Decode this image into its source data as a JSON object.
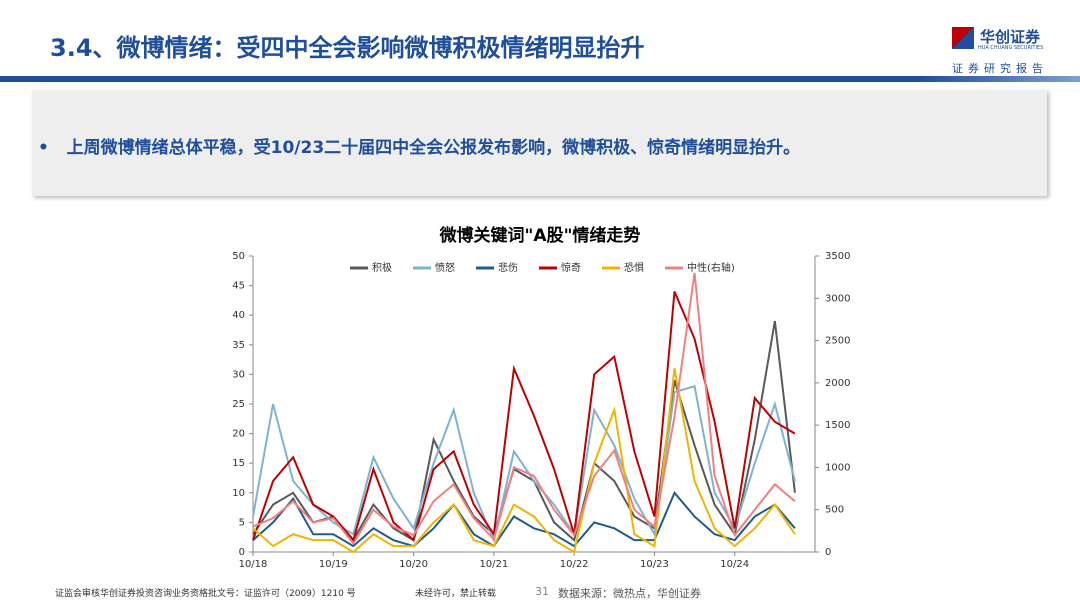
{
  "header": {
    "title": "3.4、微博情绪：受四中全会影响微博积极情绪明显抬升",
    "logo_name": "华创证券",
    "logo_sub": "HUA CHUANG SECURITIES",
    "tagline": "证券研究报告"
  },
  "bullet": "上周微博情绪总体平稳，受10/23二十届四中全会公报发布影响，微博积极、惊奇情绪明显抬升。",
  "chart_data": {
    "type": "line",
    "title": "微博关键词\"A股\"情绪走势",
    "categories": [
      "10/18",
      null,
      null,
      null,
      "10/19",
      null,
      null,
      null,
      "10/20",
      null,
      null,
      null,
      "10/21",
      null,
      null,
      null,
      "10/22",
      null,
      null,
      null,
      "10/23",
      null,
      null,
      null,
      "10/24",
      null,
      null,
      null
    ],
    "series": [
      {
        "name": "积极",
        "color": "#595959",
        "values": [
          3,
          8,
          10,
          5,
          6,
          2,
          8,
          4,
          2,
          19,
          12,
          6,
          3,
          14,
          12,
          5,
          2,
          15,
          12,
          6,
          4,
          29,
          18,
          8,
          3,
          19,
          39,
          10
        ]
      },
      {
        "name": "愤怒",
        "color": "#7fb2d0",
        "values": [
          6,
          25,
          12,
          8,
          5,
          3,
          16,
          9,
          4,
          15,
          24,
          10,
          2,
          17,
          12,
          8,
          3,
          24,
          18,
          9,
          3,
          27,
          28,
          10,
          4,
          15,
          25,
          12
        ]
      },
      {
        "name": "悲伤",
        "color": "#1f5c8b",
        "values": [
          2,
          5,
          9,
          3,
          3,
          1,
          4,
          2,
          1,
          4,
          8,
          3,
          1,
          6,
          4,
          3,
          1,
          5,
          4,
          2,
          2,
          10,
          6,
          3,
          2,
          6,
          8,
          4
        ]
      },
      {
        "name": "惊奇",
        "color": "#c00000",
        "values": [
          2,
          12,
          16,
          8,
          6,
          2,
          14,
          5,
          2,
          14,
          17,
          8,
          3,
          31,
          23,
          14,
          3,
          30,
          33,
          17,
          6,
          44,
          36,
          22,
          4,
          26,
          22,
          20
        ]
      },
      {
        "name": "恐惧",
        "color": "#f0b400",
        "values": [
          4,
          1,
          3,
          2,
          2,
          0,
          3,
          1,
          1,
          5,
          8,
          2,
          1,
          8,
          6,
          2,
          0,
          15,
          24,
          3,
          1,
          31,
          12,
          4,
          1,
          4,
          8,
          3
        ]
      },
      {
        "name": "中性(右轴)",
        "color": "#f08080",
        "axis": "y2",
        "values": [
          300,
          400,
          600,
          350,
          400,
          100,
          500,
          300,
          200,
          600,
          800,
          400,
          150,
          1000,
          900,
          500,
          200,
          900,
          1200,
          500,
          300,
          1600,
          3300,
          900,
          200,
          500,
          800,
          600
        ]
      }
    ],
    "ylim": [
      0,
      50
    ],
    "yticks": [
      0,
      5,
      10,
      15,
      20,
      25,
      30,
      35,
      40,
      45,
      50
    ],
    "y2lim": [
      0,
      3500
    ],
    "y2ticks": [
      0,
      500,
      1000,
      1500,
      2000,
      2500,
      3000,
      3500
    ],
    "legend": "top",
    "grid": false
  },
  "footer": {
    "license": "证监会审核华创证券投资咨询业务资格批文号：证监许可（2009）1210 号",
    "notice": "未经许可，禁止转载",
    "page": "31",
    "source": "数据来源：微热点，华创证券"
  }
}
